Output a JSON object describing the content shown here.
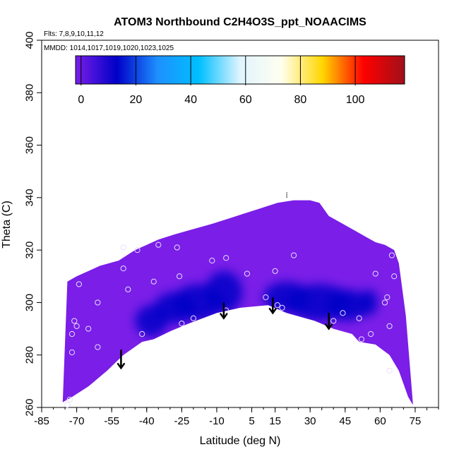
{
  "chart_data": {
    "type": "heatmap",
    "title": "ATOM3 Northbound C2H4O3S_ppt_NOAACIMS",
    "flights_note": "Flts: 7,8,9,10,11,12",
    "mmdd_note": "MMDD: 1014,1017,1019,1020,1023,1025",
    "xlabel": "Latitude (deg N)",
    "ylabel": "Theta (C)",
    "xlim": [
      -85,
      85
    ],
    "ylim": [
      260,
      400
    ],
    "x_ticks": [
      -85,
      -70,
      -55,
      -40,
      -25,
      -10,
      5,
      15,
      30,
      45,
      60,
      75
    ],
    "y_ticks": [
      260,
      280,
      300,
      320,
      340,
      360,
      380,
      400
    ],
    "colorbar": {
      "min": -2,
      "max": 118,
      "ticks": [
        0,
        20,
        40,
        60,
        80,
        100
      ],
      "colors": [
        "#7a1ee8",
        "#0000c8",
        "#1e90ff",
        "#00bfff",
        "#e0f4ff",
        "#fffff0",
        "#ffd700",
        "#ff0000",
        "#a0101a"
      ]
    },
    "upper_boundary": [
      [
        -74,
        308
      ],
      [
        -70,
        310
      ],
      [
        -65,
        312
      ],
      [
        -60,
        314
      ],
      [
        -52,
        316
      ],
      [
        -45,
        320
      ],
      [
        -40,
        322
      ],
      [
        -35,
        324
      ],
      [
        -28,
        326
      ],
      [
        -20,
        328
      ],
      [
        -12,
        330
      ],
      [
        -5,
        332
      ],
      [
        2,
        334
      ],
      [
        9,
        336
      ],
      [
        16,
        338
      ],
      [
        23,
        339
      ],
      [
        30,
        339
      ],
      [
        34,
        338
      ],
      [
        38,
        333
      ],
      [
        44,
        330
      ],
      [
        50,
        327
      ],
      [
        54,
        325
      ],
      [
        58,
        323
      ],
      [
        62,
        322
      ],
      [
        66,
        320
      ],
      [
        68,
        315
      ],
      [
        71,
        295
      ],
      [
        74,
        262
      ]
    ],
    "lower_boundary": [
      [
        -76,
        262
      ],
      [
        -72,
        264
      ],
      [
        -65,
        268
      ],
      [
        -57,
        274
      ],
      [
        -50,
        280
      ],
      [
        -42,
        285
      ],
      [
        -37,
        286
      ],
      [
        -30,
        289
      ],
      [
        -22,
        292
      ],
      [
        -10,
        296
      ],
      [
        0,
        298
      ],
      [
        12,
        299
      ],
      [
        20,
        296
      ],
      [
        32,
        293
      ],
      [
        40,
        290
      ],
      [
        48,
        288
      ],
      [
        51,
        285
      ],
      [
        58,
        284
      ],
      [
        64,
        280
      ],
      [
        68,
        274
      ],
      [
        72,
        264
      ],
      [
        74,
        261
      ]
    ],
    "dark_regions": [
      {
        "x": -38,
        "y": 293,
        "rx": 7,
        "ry": 6
      },
      {
        "x": -28,
        "y": 298,
        "rx": 9,
        "ry": 6
      },
      {
        "x": -18,
        "y": 300,
        "rx": 11,
        "ry": 7
      },
      {
        "x": -7,
        "y": 304,
        "rx": 8,
        "ry": 8
      },
      {
        "x": 20,
        "y": 302,
        "rx": 10,
        "ry": 6
      },
      {
        "x": 34,
        "y": 300,
        "rx": 14,
        "ry": 7
      },
      {
        "x": 46,
        "y": 299,
        "rx": 9,
        "ry": 6
      },
      {
        "x": 55,
        "y": 300,
        "rx": 4,
        "ry": 5
      }
    ],
    "sample_points": [
      [
        -74,
        261
      ],
      [
        -73,
        263
      ],
      [
        -72,
        281
      ],
      [
        -72,
        288
      ],
      [
        -71,
        293
      ],
      [
        -70,
        291
      ],
      [
        -69,
        307
      ],
      [
        -65,
        290
      ],
      [
        -61,
        300
      ],
      [
        -61,
        283
      ],
      [
        -50,
        321
      ],
      [
        -50,
        313
      ],
      [
        -48,
        305
      ],
      [
        -44,
        320
      ],
      [
        -42,
        288
      ],
      [
        -37,
        308
      ],
      [
        -35,
        322
      ],
      [
        -27,
        321
      ],
      [
        -26,
        310
      ],
      [
        -25,
        292
      ],
      [
        -20,
        294
      ],
      [
        -12,
        316
      ],
      [
        -6,
        297
      ],
      [
        -6,
        317
      ],
      [
        3,
        311
      ],
      [
        11,
        302
      ],
      [
        15,
        312
      ],
      [
        16,
        299
      ],
      [
        18,
        298
      ],
      [
        23,
        318
      ],
      [
        40,
        293
      ],
      [
        44,
        296
      ],
      [
        51,
        294
      ],
      [
        52,
        286
      ],
      [
        56,
        288
      ],
      [
        58,
        311
      ],
      [
        62,
        300
      ],
      [
        63,
        302
      ],
      [
        64,
        274
      ],
      [
        64,
        291
      ],
      [
        65,
        318
      ],
      [
        66,
        310
      ]
    ],
    "arrows": [
      {
        "x": -51,
        "from": 282,
        "to": 275
      },
      {
        "x": -7,
        "from": 300,
        "to": 294
      },
      {
        "x": 14,
        "from": 302,
        "to": 296
      },
      {
        "x": 38,
        "from": 296,
        "to": 290
      }
    ],
    "top_mark": {
      "x": 20,
      "from": 340,
      "to": 342
    }
  }
}
